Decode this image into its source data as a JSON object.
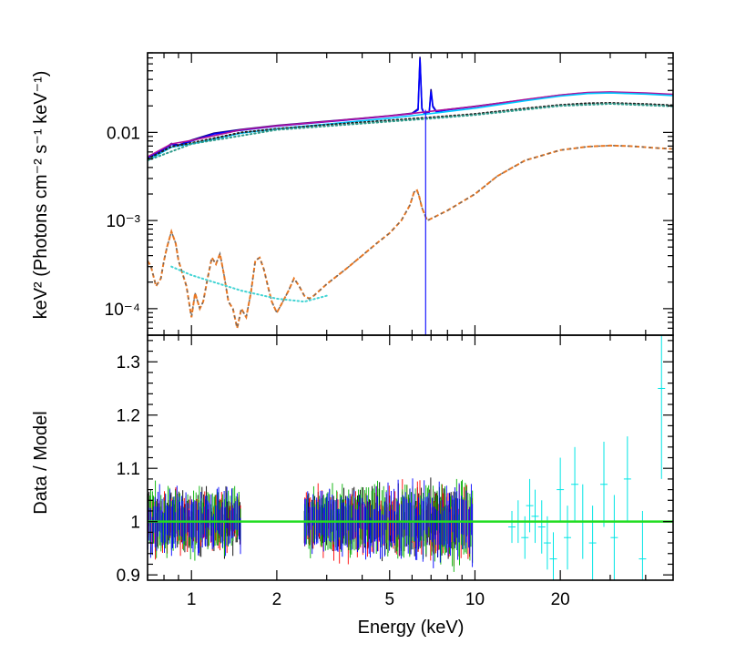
{
  "chart_data": {
    "type": "line",
    "xlabel": "Energy (keV)",
    "x_scale": "log",
    "xlim": [
      0.7,
      50
    ],
    "x_ticks": [
      {
        "value": 1,
        "label": "1"
      },
      {
        "value": 2,
        "label": "2"
      },
      {
        "value": 5,
        "label": "5"
      },
      {
        "value": 10,
        "label": "10"
      },
      {
        "value": 20,
        "label": "20"
      }
    ],
    "panels": [
      {
        "name": "spectrum",
        "ylabel": "keV² (Photons cm⁻² s⁻¹ keV⁻¹)",
        "y_scale": "log",
        "ylim": [
          5e-05,
          0.08
        ],
        "y_ticks": [
          {
            "value": 0.01,
            "label": "0.01"
          },
          {
            "value": 0.001,
            "label": "10⁻³"
          },
          {
            "value": 0.0001,
            "label": "10⁻⁴"
          }
        ],
        "series": [
          {
            "name": "total model (dark blue)",
            "color": "#1a0a8c",
            "style": "solid",
            "x": [
              0.7,
              0.8,
              0.85,
              0.9,
              1.0,
              1.2,
              1.5,
              2.0,
              3.0,
              4.0,
              5.0,
              6.0,
              6.3,
              6.4,
              6.5,
              6.6,
              6.9,
              7.0,
              7.1,
              7.3,
              8.0,
              10.0,
              15.0,
              20.0,
              25.0,
              30.0,
              40.0,
              50.0
            ],
            "y": [
              0.0052,
              0.0065,
              0.0075,
              0.0072,
              0.0082,
              0.0098,
              0.0108,
              0.012,
              0.0134,
              0.0145,
              0.0155,
              0.0165,
              0.0185,
              0.072,
              0.019,
              0.0168,
              0.0172,
              0.031,
              0.02,
              0.0175,
              0.0182,
              0.0198,
              0.0235,
              0.0265,
              0.0282,
              0.0285,
              0.0278,
              0.0268
            ]
          },
          {
            "name": "model (blue)",
            "color": "#0000ff",
            "style": "solid",
            "x": [
              0.7,
              0.8,
              0.85,
              0.9,
              1.0,
              1.2,
              1.5,
              2.0,
              3.0,
              4.0,
              5.0,
              6.0,
              6.3,
              6.4,
              6.5,
              6.6,
              6.9,
              7.0,
              7.1,
              7.3,
              8.0,
              10.0,
              15.0,
              20.0,
              25.0,
              30.0,
              40.0,
              50.0
            ],
            "y": [
              0.0051,
              0.0064,
              0.0073,
              0.0071,
              0.008,
              0.0096,
              0.0106,
              0.0118,
              0.0132,
              0.0143,
              0.0153,
              0.0163,
              0.018,
              0.068,
              0.0185,
              0.0166,
              0.017,
              0.029,
              0.0195,
              0.0172,
              0.018,
              0.0196,
              0.0232,
              0.0262,
              0.0279,
              0.0282,
              0.0275,
              0.0265
            ]
          },
          {
            "name": "model (purple)",
            "color": "#b0129c",
            "style": "solid",
            "x": [
              0.7,
              0.85,
              1.0,
              1.5,
              2.0,
              3.0,
              5.0,
              6.0,
              7.5,
              10.0,
              15.0,
              20.0,
              25.0,
              30.0,
              40.0,
              50.0
            ],
            "y": [
              0.0053,
              0.0074,
              0.0081,
              0.0107,
              0.0119,
              0.0133,
              0.0154,
              0.0164,
              0.0178,
              0.0197,
              0.0236,
              0.0266,
              0.0284,
              0.0288,
              0.028,
              0.027
            ]
          },
          {
            "name": "model (cyan)",
            "color": "#00c8ff",
            "style": "solid",
            "x": [
              0.7,
              0.85,
              1.0,
              1.5,
              2.0,
              3.0,
              5.0,
              6.0,
              7.5,
              10.0,
              15.0,
              20.0,
              25.0,
              30.0,
              40.0,
              50.0
            ],
            "y": [
              0.0048,
              0.0068,
              0.0074,
              0.0098,
              0.011,
              0.0124,
              0.0145,
              0.0155,
              0.0168,
              0.0188,
              0.0228,
              0.0258,
              0.0276,
              0.028,
              0.0272,
              0.0262
            ]
          },
          {
            "name": "continuum (dotted black)",
            "color": "#222222",
            "style": "dotted",
            "x": [
              0.7,
              0.85,
              1.0,
              1.5,
              2.0,
              3.0,
              5.0,
              6.0,
              7.0,
              10.0,
              15.0,
              20.0,
              25.0,
              30.0,
              40.0,
              50.0
            ],
            "y": [
              0.005,
              0.0069,
              0.0076,
              0.01,
              0.011,
              0.0122,
              0.0137,
              0.0143,
              0.0148,
              0.0162,
              0.0187,
              0.0205,
              0.0214,
              0.0216,
              0.021,
              0.0203
            ]
          },
          {
            "name": "continuum (dotted teal)",
            "color": "#2e9c8c",
            "style": "dotted",
            "x": [
              0.7,
              1.0,
              2.0,
              5.0,
              7.0,
              10.0,
              20.0,
              30.0,
              50.0
            ],
            "y": [
              0.0048,
              0.0074,
              0.0107,
              0.0133,
              0.0144,
              0.0158,
              0.02,
              0.0211,
              0.0198
            ]
          },
          {
            "name": "reflection component (orange)",
            "color": "#e87722",
            "style": "dashed",
            "x": [
              0.7,
              0.72,
              0.75,
              0.78,
              0.8,
              0.82,
              0.85,
              0.88,
              0.9,
              0.93,
              0.96,
              1.0,
              1.03,
              1.07,
              1.1,
              1.14,
              1.18,
              1.22,
              1.26,
              1.3,
              1.35,
              1.4,
              1.45,
              1.5,
              1.56,
              1.62,
              1.68,
              1.74,
              1.8,
              1.86,
              1.92,
              2.0,
              2.1,
              2.2,
              2.3,
              2.4,
              2.5,
              2.6,
              2.7,
              3.0,
              3.5,
              4.0,
              4.5,
              5.0,
              5.5,
              5.9,
              6.1,
              6.25,
              6.35,
              6.5,
              6.7,
              6.8,
              7.0,
              8.0,
              10.0,
              12.0,
              15.0,
              20.0,
              25.0,
              30.0,
              35.0,
              40.0,
              45.0,
              50.0
            ],
            "y": [
              0.00035,
              0.0003,
              0.00018,
              0.00022,
              0.00035,
              0.0005,
              0.00075,
              0.00055,
              0.00035,
              0.00025,
              0.00018,
              8e-05,
              0.00015,
              0.0001,
              0.00012,
              0.00022,
              0.00038,
              0.00032,
              0.00042,
              0.00025,
              0.00012,
              0.0001,
              6e-05,
              0.0001,
              8e-05,
              0.00015,
              0.00035,
              0.00038,
              0.00028,
              0.00018,
              0.00012,
              9e-05,
              0.00012,
              0.00016,
              0.00022,
              0.00018,
              0.00014,
              0.00013,
              0.00014,
              0.00019,
              0.00028,
              0.0004,
              0.00055,
              0.00072,
              0.001,
              0.0015,
              0.0021,
              0.0022,
              0.0019,
              0.0014,
              0.0011,
              0.001,
              0.00105,
              0.0013,
              0.002,
              0.0032,
              0.0048,
              0.0063,
              0.0069,
              0.0071,
              0.007,
              0.0068,
              0.0066,
              0.0065
            ]
          },
          {
            "name": "thermal component (dotted cyan)",
            "color": "#44d4d4",
            "style": "dotted",
            "x": [
              0.85,
              1.0,
              1.2,
              1.5,
              2.0,
              2.5,
              3.0
            ],
            "y": [
              0.0003,
              0.00024,
              0.0002,
              0.00016,
              0.00013,
              0.00012,
              0.00014
            ]
          }
        ],
        "annotations": [
          {
            "type": "vertical-line",
            "x": 6.7,
            "y_from": 0.018,
            "y_to": 5e-05,
            "color": "#1a1aff",
            "text": ""
          }
        ]
      },
      {
        "name": "ratio",
        "ylabel": "Data / Model",
        "y_scale": "linear",
        "ylim": [
          0.89,
          1.35
        ],
        "y_ticks": [
          {
            "value": 0.9,
            "label": "0.9"
          },
          {
            "value": 1,
            "label": "1"
          },
          {
            "value": 1.1,
            "label": "1.1"
          },
          {
            "value": 1.2,
            "label": "1.2"
          },
          {
            "value": 1.3,
            "label": "1.3"
          }
        ],
        "reference_line": {
          "y": 1.0,
          "color": "#22dd22"
        },
        "series": [
          {
            "name": "ratio (black)",
            "color": "#000000",
            "ranges": [
              [
                0.7,
                1.5
              ],
              [
                2.5,
                8.6
              ]
            ],
            "spread": 0.04
          },
          {
            "name": "ratio (red)",
            "color": "#ff0000",
            "ranges": [
              [
                0.7,
                1.5
              ],
              [
                2.5,
                9.9
              ]
            ],
            "spread": 0.04
          },
          {
            "name": "ratio (green)",
            "color": "#00b000",
            "ranges": [
              [
                0.7,
                1.5
              ],
              [
                2.5,
                9.9
              ]
            ],
            "spread": 0.045
          },
          {
            "name": "ratio (blue)",
            "color": "#0000ff",
            "ranges": [
              [
                0.7,
                1.5
              ],
              [
                2.5,
                9.9
              ]
            ],
            "spread": 0.04
          }
        ],
        "cyan_points": {
          "name": "ratio (cyan)",
          "color": "#00e5e5",
          "x": [
            13.5,
            14.2,
            15.0,
            15.6,
            16.3,
            17.2,
            18.0,
            18.9,
            20.0,
            21.2,
            22.5,
            24.0,
            26.0,
            28.5,
            31.0,
            34.5,
            39.0,
            45.5
          ],
          "y": [
            0.99,
            1.0,
            0.97,
            1.03,
            1.01,
            0.99,
            0.96,
            0.93,
            1.06,
            0.97,
            1.07,
            1.0,
            0.96,
            1.07,
            0.97,
            1.08,
            0.93,
            1.25
          ],
          "err": [
            0.03,
            0.04,
            0.04,
            0.05,
            0.05,
            0.05,
            0.05,
            0.05,
            0.06,
            0.06,
            0.07,
            0.07,
            0.07,
            0.08,
            0.08,
            0.08,
            0.09,
            0.17
          ]
        }
      }
    ]
  }
}
